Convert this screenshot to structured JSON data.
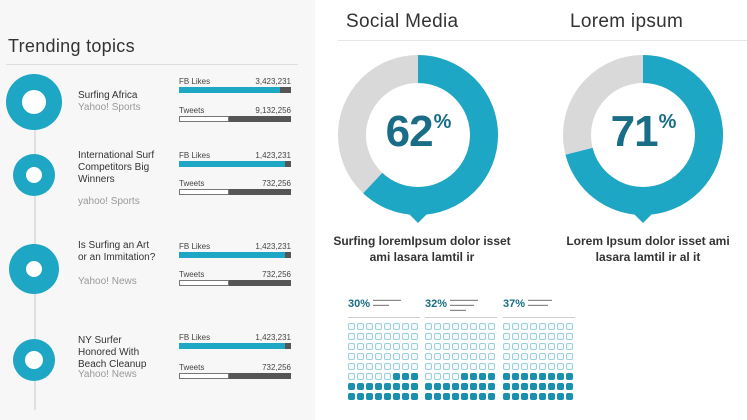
{
  "trending": {
    "title": "Trending topics",
    "topics": [
      {
        "title": "Surfing Africa",
        "source": "Yahoo! Sports",
        "likes_label": "FB Likes",
        "likes_value": "3,423,231",
        "likes_fill": 0.9,
        "tweets_label": "Tweets",
        "tweets_value": "9,132,256",
        "tweets_fill": 0.45
      },
      {
        "title": "International Surf Competitors Big Winners",
        "source": "yahoo! Sports",
        "likes_label": "FB Likes",
        "likes_value": "1,423,231",
        "likes_fill": 0.95,
        "tweets_label": "Tweets",
        "tweets_value": "732,256",
        "tweets_fill": 0.45
      },
      {
        "title": "Is Surfing an Art or an Immitation?",
        "source": "Yahoo! News",
        "likes_label": "FB Likes",
        "likes_value": "1,423,231",
        "likes_fill": 0.95,
        "tweets_label": "Tweets",
        "tweets_value": "732,256",
        "tweets_fill": 0.45
      },
      {
        "title": "NY Surfer Honored With Beach Cleanup",
        "source": "Yahoo! News",
        "likes_label": "FB Likes",
        "likes_value": "1,423,231",
        "likes_fill": 0.95,
        "tweets_label": "Tweets",
        "tweets_value": "732,256",
        "tweets_fill": 0.45
      }
    ]
  },
  "social": {
    "title": "Social Media",
    "value": "62",
    "percent_sign": "%",
    "fraction": 0.62,
    "caption": "Surfing loremIpsum dolor isset ami lasara lamtil ir"
  },
  "lorem": {
    "title": "Lorem ipsum",
    "value": "71",
    "percent_sign": "%",
    "fraction": 0.71,
    "caption": "Lorem Ipsum dolor isset ami lasara lamtil ir al it"
  },
  "waffles": [
    {
      "percent": "30%",
      "fraction": 0.3
    },
    {
      "percent": "32%",
      "fraction": 0.32
    },
    {
      "percent": "37%",
      "fraction": 0.37
    }
  ],
  "colors": {
    "accent": "#1ea6c5",
    "accent_dark": "#1a6d86",
    "donut_track": "#d9d9d9"
  }
}
